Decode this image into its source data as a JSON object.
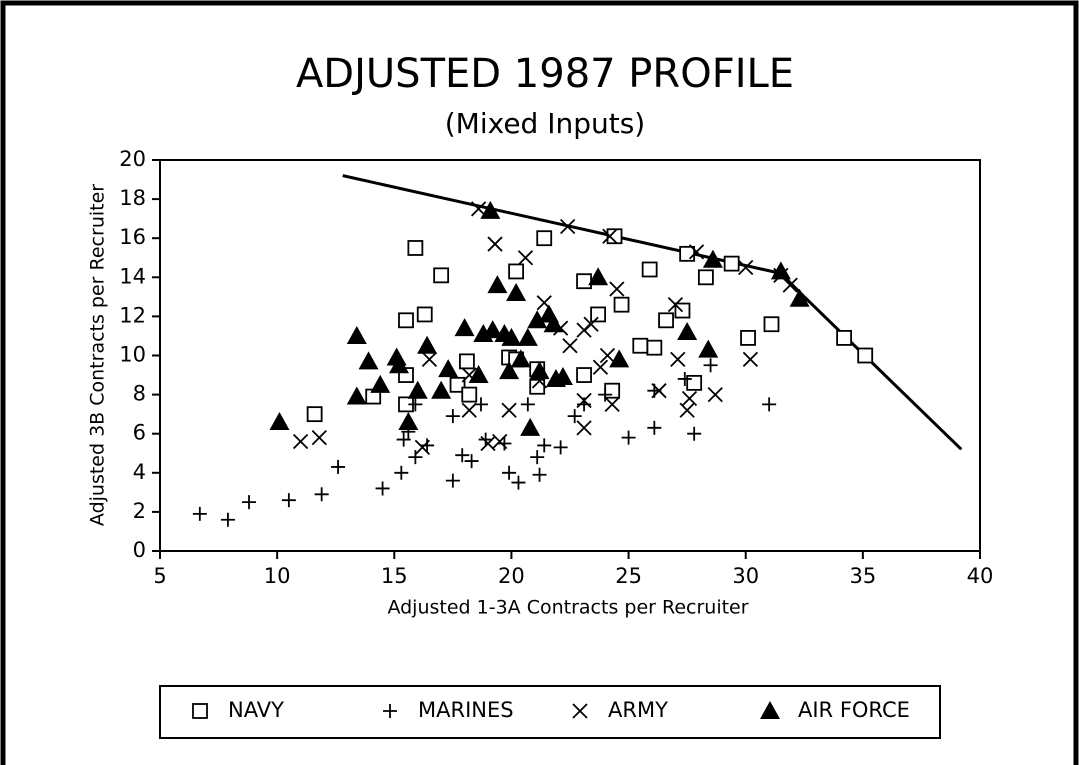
{
  "chart_data": {
    "type": "scatter",
    "title": "ADJUSTED 1987 PROFILE",
    "subtitle": "(Mixed Inputs)",
    "x_label": "Adjusted 1-3A Contracts per Recruiter",
    "y_label": "Adjusted 3B Contracts per Recruiter",
    "xlim": [
      5,
      40
    ],
    "ylim": [
      0,
      20
    ],
    "xticks": [
      5,
      10,
      15,
      20,
      25,
      30,
      35,
      40
    ],
    "yticks": [
      0,
      2,
      4,
      6,
      8,
      10,
      12,
      14,
      16,
      18,
      20
    ],
    "legend": "bottom",
    "series": [
      {
        "name": "NAVY",
        "marker": "square",
        "color": "#000000",
        "x": [
          15.9,
          17.0,
          16.3,
          15.5,
          11.6,
          15.5,
          15.5,
          14.1,
          17.7,
          18.1,
          18.2,
          19.9,
          20.2,
          21.4,
          23.1,
          23.7,
          21.1,
          21.1,
          20.2,
          23.1,
          24.3,
          24.7,
          24.4,
          25.9,
          26.1,
          25.5,
          26.6,
          27.5,
          27.3,
          27.8,
          28.3,
          29.4,
          30.1,
          31.1,
          34.2,
          35.1
        ],
        "y": [
          15.5,
          14.1,
          12.1,
          11.8,
          7.0,
          9.0,
          7.5,
          7.9,
          8.5,
          9.7,
          8.0,
          9.9,
          14.3,
          16.0,
          13.8,
          12.1,
          8.4,
          9.3,
          9.8,
          9.0,
          8.2,
          12.6,
          16.1,
          14.4,
          10.4,
          10.5,
          11.8,
          15.2,
          12.3,
          8.6,
          14.0,
          14.7,
          10.9,
          11.6,
          10.9,
          10.0
        ]
      },
      {
        "name": "MARINES",
        "marker": "plus",
        "color": "#000000",
        "x": [
          6.7,
          7.9,
          8.8,
          10.5,
          11.9,
          12.6,
          14.5,
          15.3,
          15.4,
          15.9,
          16.4,
          17.5,
          17.9,
          18.3,
          18.7,
          18.9,
          19.7,
          19.9,
          20.3,
          20.7,
          21.1,
          21.2,
          21.4,
          22.1,
          22.7,
          23.1,
          25.0,
          24.0,
          26.1,
          27.4,
          27.8,
          28.5,
          31.0,
          26.1,
          15.9,
          15.6,
          17.5
        ],
        "y": [
          1.9,
          1.6,
          2.5,
          2.6,
          2.9,
          4.3,
          3.2,
          4.0,
          5.7,
          4.8,
          5.4,
          3.6,
          4.9,
          4.6,
          7.5,
          5.7,
          5.5,
          4.0,
          3.5,
          7.5,
          4.8,
          3.9,
          5.4,
          5.3,
          6.9,
          7.5,
          5.8,
          8.0,
          8.2,
          8.8,
          6.0,
          9.5,
          7.5,
          6.3,
          7.5,
          6.1,
          6.9
        ]
      },
      {
        "name": "ARMY",
        "marker": "cross",
        "color": "#000000",
        "x": [
          11.0,
          11.8,
          16.2,
          16.5,
          18.2,
          18.2,
          19.0,
          19.5,
          19.9,
          19.3,
          20.6,
          18.6,
          21.4,
          22.1,
          22.5,
          23.1,
          23.4,
          23.1,
          23.1,
          23.8,
          24.1,
          24.3,
          24.5,
          22.4,
          24.2,
          26.3,
          27.1,
          27.0,
          27.5,
          27.6,
          28.7,
          30.2,
          27.9,
          30.0,
          31.5,
          31.9,
          21.2
        ],
        "y": [
          5.6,
          5.8,
          5.3,
          9.8,
          7.2,
          9.0,
          5.5,
          5.6,
          7.2,
          15.7,
          15.0,
          17.5,
          12.7,
          11.4,
          10.5,
          11.3,
          11.6,
          6.3,
          7.7,
          9.4,
          10.0,
          7.5,
          13.4,
          16.6,
          16.1,
          8.2,
          9.8,
          12.6,
          7.2,
          7.8,
          8.0,
          9.8,
          15.3,
          14.5,
          14.1,
          13.6,
          8.7
        ]
      },
      {
        "name": "AIR FORCE",
        "marker": "triangle",
        "color": "#000000",
        "x": [
          10.1,
          13.4,
          13.4,
          13.9,
          14.4,
          15.1,
          15.2,
          15.6,
          16.0,
          16.4,
          17.0,
          17.3,
          18.0,
          18.6,
          18.8,
          19.2,
          19.1,
          19.4,
          19.7,
          20.2,
          19.9,
          20.0,
          20.4,
          20.7,
          20.8,
          21.1,
          21.6,
          21.8,
          21.2,
          21.9,
          22.2,
          23.7,
          24.6,
          27.5,
          28.4,
          28.6,
          31.5,
          32.3
        ],
        "y": [
          6.6,
          11.0,
          7.9,
          9.7,
          8.5,
          9.9,
          9.5,
          6.6,
          8.2,
          10.5,
          8.2,
          9.3,
          11.4,
          9.0,
          11.1,
          11.3,
          17.4,
          13.6,
          11.1,
          13.2,
          9.2,
          10.9,
          9.8,
          10.9,
          6.3,
          11.8,
          12.1,
          11.6,
          9.2,
          8.8,
          8.9,
          14.0,
          9.8,
          11.2,
          10.3,
          14.9,
          14.3,
          12.9
        ]
      }
    ],
    "line": {
      "color": "#000000",
      "x": [
        12.8,
        31.5,
        32.5,
        39.2
      ],
      "y": [
        19.2,
        14.2,
        13.0,
        5.2
      ]
    }
  }
}
